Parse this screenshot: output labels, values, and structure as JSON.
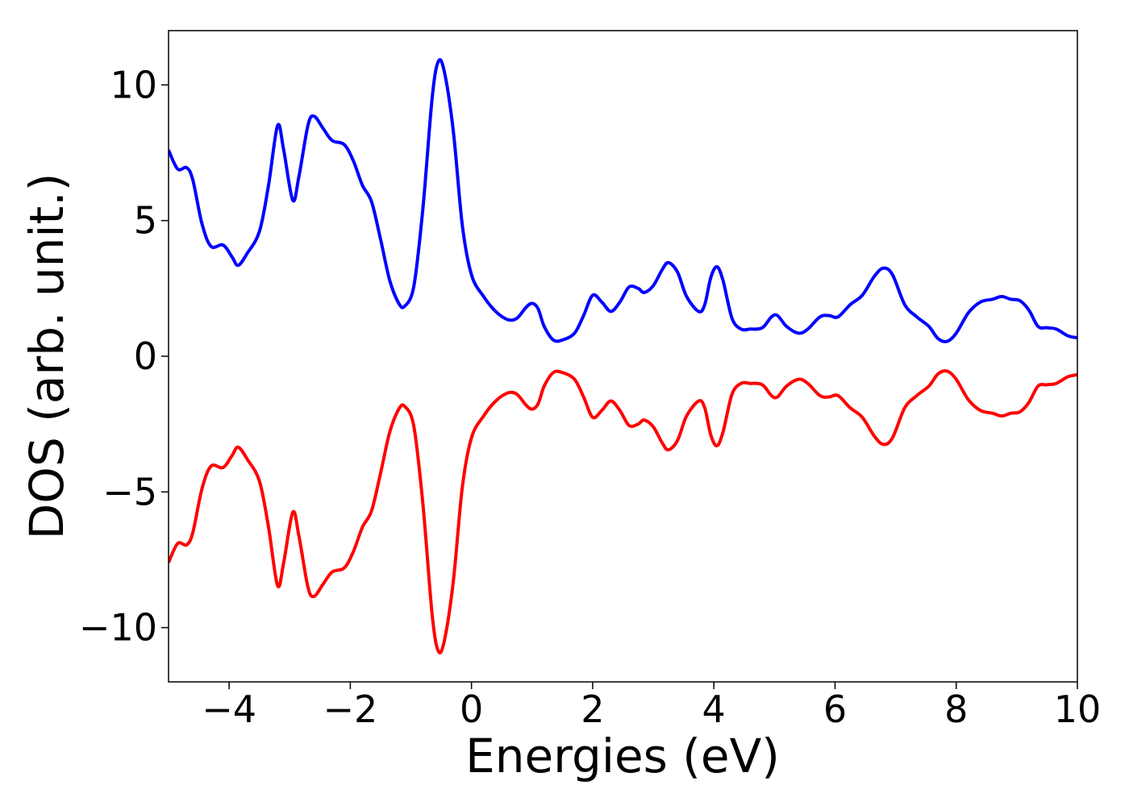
{
  "chart_data": {
    "type": "line",
    "title": "",
    "xlabel": "Energies (eV)",
    "ylabel": "DOS (arb. unit.)",
    "xlim": [
      -5,
      10
    ],
    "ylim": [
      -12,
      12
    ],
    "grid": false,
    "legend": "none",
    "x_ticks": [
      -4,
      -2,
      0,
      2,
      4,
      6,
      8,
      10
    ],
    "x_tick_labels": [
      "−4",
      "−2",
      "0",
      "2",
      "4",
      "6",
      "8",
      "10"
    ],
    "y_ticks": [
      -10,
      -5,
      0,
      5,
      10
    ],
    "y_tick_labels": [
      "−10",
      "−5",
      "0",
      "5",
      "10"
    ],
    "series": [
      {
        "color": "#0000ff",
        "points": [
          [
            -5.0,
            7.6
          ],
          [
            -4.85,
            6.9
          ],
          [
            -4.7,
            6.95
          ],
          [
            -4.6,
            6.5
          ],
          [
            -4.45,
            4.9
          ],
          [
            -4.3,
            4.05
          ],
          [
            -4.1,
            4.1
          ],
          [
            -3.95,
            3.65
          ],
          [
            -3.85,
            3.35
          ],
          [
            -3.7,
            3.8
          ],
          [
            -3.5,
            4.6
          ],
          [
            -3.35,
            6.3
          ],
          [
            -3.2,
            8.5
          ],
          [
            -3.1,
            7.6
          ],
          [
            -2.95,
            5.75
          ],
          [
            -2.85,
            6.6
          ],
          [
            -2.7,
            8.5
          ],
          [
            -2.6,
            8.85
          ],
          [
            -2.45,
            8.4
          ],
          [
            -2.3,
            7.95
          ],
          [
            -2.1,
            7.8
          ],
          [
            -1.95,
            7.2
          ],
          [
            -1.8,
            6.3
          ],
          [
            -1.65,
            5.7
          ],
          [
            -1.5,
            4.3
          ],
          [
            -1.35,
            2.8
          ],
          [
            -1.2,
            1.95
          ],
          [
            -1.1,
            1.85
          ],
          [
            -0.95,
            2.6
          ],
          [
            -0.8,
            5.5
          ],
          [
            -0.65,
            9.5
          ],
          [
            -0.55,
            10.85
          ],
          [
            -0.45,
            10.5
          ],
          [
            -0.3,
            8.3
          ],
          [
            -0.15,
            4.8
          ],
          [
            0.0,
            3.0
          ],
          [
            0.2,
            2.2
          ],
          [
            0.4,
            1.65
          ],
          [
            0.6,
            1.35
          ],
          [
            0.75,
            1.4
          ],
          [
            0.9,
            1.8
          ],
          [
            1.0,
            1.95
          ],
          [
            1.1,
            1.75
          ],
          [
            1.2,
            1.1
          ],
          [
            1.35,
            0.6
          ],
          [
            1.5,
            0.6
          ],
          [
            1.7,
            0.85
          ],
          [
            1.85,
            1.5
          ],
          [
            2.0,
            2.25
          ],
          [
            2.15,
            2.0
          ],
          [
            2.3,
            1.65
          ],
          [
            2.45,
            2.0
          ],
          [
            2.6,
            2.55
          ],
          [
            2.75,
            2.5
          ],
          [
            2.85,
            2.35
          ],
          [
            3.0,
            2.6
          ],
          [
            3.15,
            3.2
          ],
          [
            3.25,
            3.45
          ],
          [
            3.4,
            3.1
          ],
          [
            3.55,
            2.2
          ],
          [
            3.75,
            1.65
          ],
          [
            3.85,
            1.9
          ],
          [
            3.95,
            2.9
          ],
          [
            4.05,
            3.3
          ],
          [
            4.15,
            2.8
          ],
          [
            4.3,
            1.4
          ],
          [
            4.45,
            1.0
          ],
          [
            4.6,
            1.0
          ],
          [
            4.8,
            1.05
          ],
          [
            4.95,
            1.45
          ],
          [
            5.05,
            1.5
          ],
          [
            5.2,
            1.1
          ],
          [
            5.4,
            0.85
          ],
          [
            5.55,
            1.0
          ],
          [
            5.75,
            1.45
          ],
          [
            5.9,
            1.5
          ],
          [
            6.05,
            1.45
          ],
          [
            6.25,
            1.9
          ],
          [
            6.45,
            2.25
          ],
          [
            6.65,
            2.95
          ],
          [
            6.8,
            3.25
          ],
          [
            6.95,
            3.0
          ],
          [
            7.15,
            1.9
          ],
          [
            7.35,
            1.45
          ],
          [
            7.55,
            1.1
          ],
          [
            7.7,
            0.65
          ],
          [
            7.85,
            0.55
          ],
          [
            8.0,
            0.85
          ],
          [
            8.2,
            1.6
          ],
          [
            8.4,
            2.0
          ],
          [
            8.6,
            2.1
          ],
          [
            8.75,
            2.2
          ],
          [
            8.9,
            2.1
          ],
          [
            9.05,
            2.05
          ],
          [
            9.2,
            1.7
          ],
          [
            9.35,
            1.1
          ],
          [
            9.5,
            1.05
          ],
          [
            9.65,
            1.0
          ],
          [
            9.85,
            0.75
          ],
          [
            10.0,
            0.68
          ]
        ]
      },
      {
        "color": "#ff0000",
        "points": [
          [
            -5.0,
            -7.6
          ],
          [
            -4.85,
            -6.9
          ],
          [
            -4.7,
            -6.95
          ],
          [
            -4.6,
            -6.5
          ],
          [
            -4.45,
            -4.9
          ],
          [
            -4.3,
            -4.05
          ],
          [
            -4.1,
            -4.1
          ],
          [
            -3.95,
            -3.65
          ],
          [
            -3.85,
            -3.35
          ],
          [
            -3.7,
            -3.8
          ],
          [
            -3.5,
            -4.6
          ],
          [
            -3.35,
            -6.3
          ],
          [
            -3.2,
            -8.45
          ],
          [
            -3.1,
            -7.6
          ],
          [
            -2.95,
            -5.75
          ],
          [
            -2.85,
            -6.6
          ],
          [
            -2.7,
            -8.5
          ],
          [
            -2.6,
            -8.85
          ],
          [
            -2.45,
            -8.4
          ],
          [
            -2.3,
            -7.95
          ],
          [
            -2.1,
            -7.8
          ],
          [
            -1.95,
            -7.2
          ],
          [
            -1.8,
            -6.3
          ],
          [
            -1.65,
            -5.7
          ],
          [
            -1.5,
            -4.3
          ],
          [
            -1.35,
            -2.8
          ],
          [
            -1.2,
            -1.95
          ],
          [
            -1.1,
            -1.85
          ],
          [
            -0.95,
            -2.6
          ],
          [
            -0.8,
            -5.5
          ],
          [
            -0.65,
            -9.5
          ],
          [
            -0.55,
            -10.85
          ],
          [
            -0.45,
            -10.5
          ],
          [
            -0.3,
            -8.3
          ],
          [
            -0.15,
            -4.8
          ],
          [
            0.0,
            -3.0
          ],
          [
            0.2,
            -2.2
          ],
          [
            0.4,
            -1.65
          ],
          [
            0.6,
            -1.35
          ],
          [
            0.75,
            -1.4
          ],
          [
            0.9,
            -1.8
          ],
          [
            1.0,
            -1.95
          ],
          [
            1.1,
            -1.75
          ],
          [
            1.2,
            -1.1
          ],
          [
            1.35,
            -0.6
          ],
          [
            1.5,
            -0.6
          ],
          [
            1.7,
            -0.85
          ],
          [
            1.85,
            -1.5
          ],
          [
            2.0,
            -2.25
          ],
          [
            2.15,
            -2.0
          ],
          [
            2.3,
            -1.65
          ],
          [
            2.45,
            -2.0
          ],
          [
            2.6,
            -2.55
          ],
          [
            2.75,
            -2.5
          ],
          [
            2.85,
            -2.35
          ],
          [
            3.0,
            -2.6
          ],
          [
            3.15,
            -3.2
          ],
          [
            3.25,
            -3.45
          ],
          [
            3.4,
            -3.1
          ],
          [
            3.55,
            -2.2
          ],
          [
            3.75,
            -1.65
          ],
          [
            3.85,
            -1.9
          ],
          [
            3.95,
            -2.9
          ],
          [
            4.05,
            -3.3
          ],
          [
            4.15,
            -2.8
          ],
          [
            4.3,
            -1.4
          ],
          [
            4.45,
            -1.0
          ],
          [
            4.6,
            -1.0
          ],
          [
            4.8,
            -1.05
          ],
          [
            4.95,
            -1.45
          ],
          [
            5.05,
            -1.5
          ],
          [
            5.2,
            -1.1
          ],
          [
            5.4,
            -0.85
          ],
          [
            5.55,
            -1.0
          ],
          [
            5.75,
            -1.45
          ],
          [
            5.9,
            -1.5
          ],
          [
            6.05,
            -1.45
          ],
          [
            6.25,
            -1.9
          ],
          [
            6.45,
            -2.25
          ],
          [
            6.65,
            -2.95
          ],
          [
            6.8,
            -3.25
          ],
          [
            6.95,
            -3.0
          ],
          [
            7.15,
            -1.9
          ],
          [
            7.35,
            -1.45
          ],
          [
            7.55,
            -1.1
          ],
          [
            7.7,
            -0.65
          ],
          [
            7.85,
            -0.55
          ],
          [
            8.0,
            -0.85
          ],
          [
            8.2,
            -1.6
          ],
          [
            8.4,
            -2.0
          ],
          [
            8.6,
            -2.1
          ],
          [
            8.75,
            -2.2
          ],
          [
            8.9,
            -2.1
          ],
          [
            9.05,
            -2.05
          ],
          [
            9.2,
            -1.7
          ],
          [
            9.35,
            -1.1
          ],
          [
            9.5,
            -1.05
          ],
          [
            9.65,
            -1.0
          ],
          [
            9.85,
            -0.75
          ],
          [
            10.0,
            -0.68
          ]
        ]
      }
    ]
  }
}
